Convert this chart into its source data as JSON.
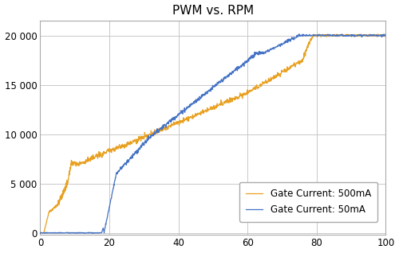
{
  "title": "PWM vs. RPM",
  "xlim": [
    0,
    100
  ],
  "ylim": [
    -200,
    21500
  ],
  "yticks": [
    0,
    5000,
    10000,
    15000,
    20000
  ],
  "xticks": [
    0,
    20,
    40,
    60,
    80,
    100
  ],
  "color_50mA": "#4472C4",
  "color_500mA": "#E8A020",
  "legend_labels": [
    "Gate Current: 50mA",
    "Gate Current: 500mA"
  ],
  "background_color": "#FFFFFF",
  "grid_color": "#C8C8C8",
  "linewidth": 0.9
}
